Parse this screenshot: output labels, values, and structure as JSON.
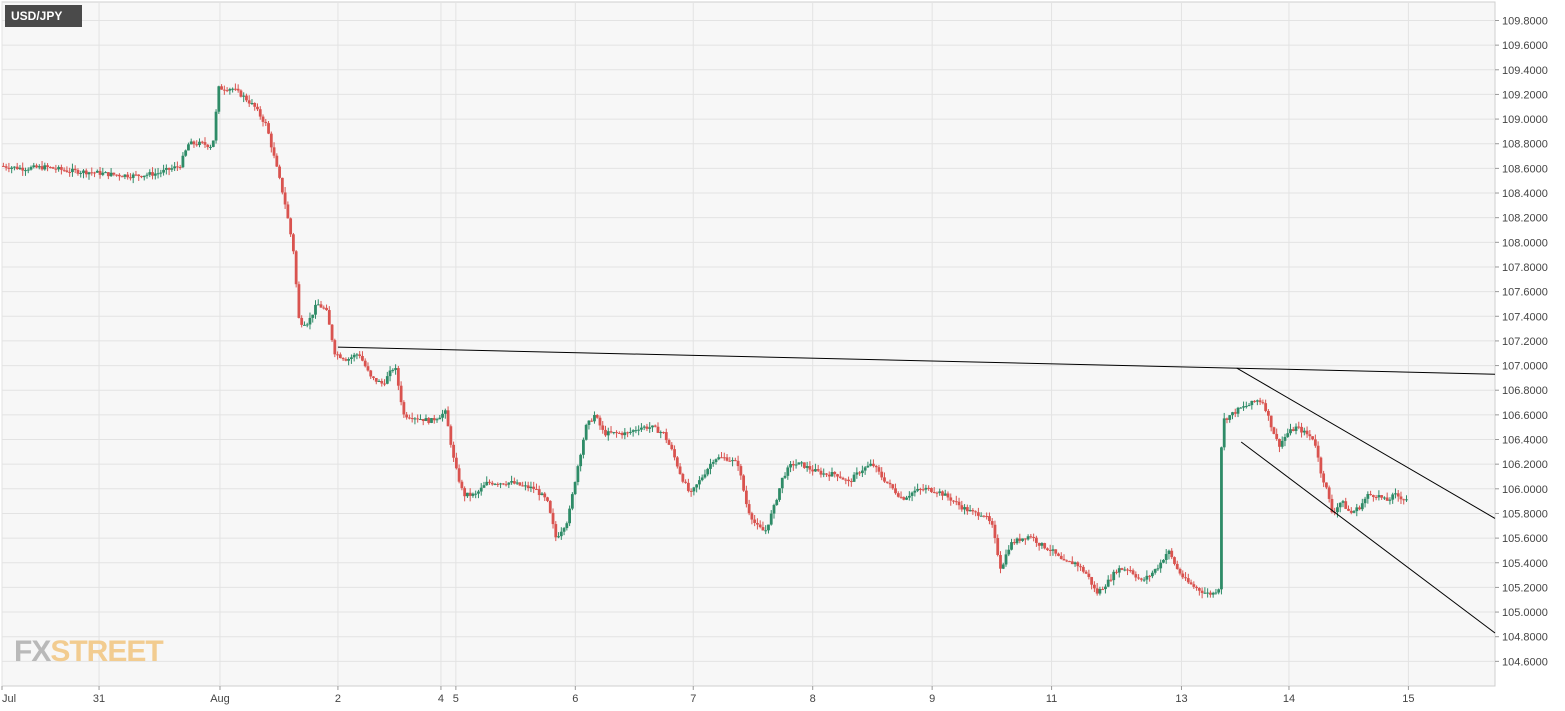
{
  "symbol": "USD/JPY",
  "logo": {
    "fx": "FX",
    "street": "STREET"
  },
  "colors": {
    "up": "#2e8b67",
    "down": "#d9534f",
    "grid": "#e3e3e3",
    "axis_text": "#444444",
    "line": "#000000"
  },
  "chart_data": {
    "type": "candlestick",
    "title": "",
    "xlabel": "",
    "ylabel": "",
    "ylim": [
      104.4,
      109.95
    ],
    "xlim": [
      0,
      1000
    ],
    "grid": true,
    "y_ticks": [
      "104.6000",
      "104.8000",
      "105.0000",
      "105.2000",
      "105.4000",
      "105.6000",
      "105.8000",
      "106.0000",
      "106.2000",
      "106.4000",
      "106.6000",
      "106.8000",
      "107.0000",
      "107.2000",
      "107.4000",
      "107.6000",
      "107.8000",
      "108.0000",
      "108.2000",
      "108.4000",
      "108.6000",
      "108.8000",
      "109.0000",
      "109.2000",
      "109.4000",
      "109.6000",
      "109.8000"
    ],
    "x_ticks": [
      {
        "label": "Jul",
        "x": 0
      },
      {
        "label": "31",
        "x": 65
      },
      {
        "label": "Aug",
        "x": 146
      },
      {
        "label": "2",
        "x": 225
      },
      {
        "label": "4",
        "x": 294
      },
      {
        "label": "5",
        "x": 304
      },
      {
        "label": "6",
        "x": 384
      },
      {
        "label": "7",
        "x": 463
      },
      {
        "label": "8",
        "x": 543
      },
      {
        "label": "9",
        "x": 623
      },
      {
        "label": "11",
        "x": 703
      },
      {
        "label": "13",
        "x": 790
      },
      {
        "label": "14",
        "x": 862
      },
      {
        "label": "15",
        "x": 942
      }
    ],
    "anchors": [
      [
        0,
        108.62
      ],
      [
        15,
        108.6
      ],
      [
        30,
        108.61
      ],
      [
        45,
        108.58
      ],
      [
        60,
        108.57
      ],
      [
        75,
        108.55
      ],
      [
        90,
        108.54
      ],
      [
        105,
        108.56
      ],
      [
        120,
        108.62
      ],
      [
        126,
        108.8
      ],
      [
        135,
        108.8
      ],
      [
        142,
        108.78
      ],
      [
        146,
        109.25
      ],
      [
        155,
        109.25
      ],
      [
        163,
        109.18
      ],
      [
        170,
        109.1
      ],
      [
        178,
        108.95
      ],
      [
        184,
        108.65
      ],
      [
        190,
        108.35
      ],
      [
        196,
        107.95
      ],
      [
        200,
        107.35
      ],
      [
        206,
        107.35
      ],
      [
        212,
        107.5
      ],
      [
        218,
        107.45
      ],
      [
        224,
        107.1
      ],
      [
        232,
        107.05
      ],
      [
        240,
        107.1
      ],
      [
        248,
        106.9
      ],
      [
        256,
        106.85
      ],
      [
        264,
        107.0
      ],
      [
        270,
        106.6
      ],
      [
        278,
        106.58
      ],
      [
        288,
        106.55
      ],
      [
        298,
        106.62
      ],
      [
        304,
        106.2
      ],
      [
        310,
        105.95
      ],
      [
        318,
        105.95
      ],
      [
        326,
        106.05
      ],
      [
        334,
        106.05
      ],
      [
        342,
        106.05
      ],
      [
        350,
        106.02
      ],
      [
        358,
        106.0
      ],
      [
        366,
        105.9
      ],
      [
        372,
        105.6
      ],
      [
        380,
        105.75
      ],
      [
        386,
        106.15
      ],
      [
        392,
        106.5
      ],
      [
        398,
        106.6
      ],
      [
        404,
        106.45
      ],
      [
        412,
        106.45
      ],
      [
        420,
        106.45
      ],
      [
        428,
        106.5
      ],
      [
        436,
        106.5
      ],
      [
        444,
        106.45
      ],
      [
        450,
        106.3
      ],
      [
        456,
        106.1
      ],
      [
        462,
        105.95
      ],
      [
        470,
        106.1
      ],
      [
        478,
        106.25
      ],
      [
        486,
        106.25
      ],
      [
        494,
        106.2
      ],
      [
        500,
        105.85
      ],
      [
        506,
        105.7
      ],
      [
        512,
        105.65
      ],
      [
        518,
        105.85
      ],
      [
        524,
        106.1
      ],
      [
        530,
        106.2
      ],
      [
        536,
        106.2
      ],
      [
        544,
        106.15
      ],
      [
        552,
        106.12
      ],
      [
        560,
        106.12
      ],
      [
        568,
        106.05
      ],
      [
        576,
        106.15
      ],
      [
        584,
        106.2
      ],
      [
        590,
        106.1
      ],
      [
        596,
        106.02
      ],
      [
        604,
        105.92
      ],
      [
        612,
        105.98
      ],
      [
        620,
        106.0
      ],
      [
        628,
        105.98
      ],
      [
        636,
        105.92
      ],
      [
        644,
        105.85
      ],
      [
        652,
        105.8
      ],
      [
        658,
        105.8
      ],
      [
        664,
        105.7
      ],
      [
        670,
        105.35
      ],
      [
        676,
        105.55
      ],
      [
        684,
        105.6
      ],
      [
        690,
        105.62
      ],
      [
        696,
        105.55
      ],
      [
        704,
        105.5
      ],
      [
        712,
        105.4
      ],
      [
        720,
        105.4
      ],
      [
        728,
        105.3
      ],
      [
        734,
        105.15
      ],
      [
        742,
        105.25
      ],
      [
        748,
        105.35
      ],
      [
        756,
        105.35
      ],
      [
        764,
        105.25
      ],
      [
        770,
        105.3
      ],
      [
        776,
        105.38
      ],
      [
        782,
        105.5
      ],
      [
        788,
        105.35
      ],
      [
        794,
        105.25
      ],
      [
        800,
        105.2
      ],
      [
        808,
        105.15
      ],
      [
        812,
        105.15
      ],
      [
        816,
        105.2
      ],
      [
        818,
        106.55
      ],
      [
        824,
        106.6
      ],
      [
        830,
        106.65
      ],
      [
        836,
        106.68
      ],
      [
        842,
        106.72
      ],
      [
        846,
        106.7
      ],
      [
        850,
        106.55
      ],
      [
        856,
        106.35
      ],
      [
        862,
        106.45
      ],
      [
        868,
        106.5
      ],
      [
        874,
        106.45
      ],
      [
        880,
        106.4
      ],
      [
        884,
        106.15
      ],
      [
        888,
        106.0
      ],
      [
        892,
        105.8
      ],
      [
        898,
        105.9
      ],
      [
        904,
        105.8
      ],
      [
        910,
        105.85
      ],
      [
        916,
        105.95
      ],
      [
        922,
        105.95
      ],
      [
        928,
        105.9
      ],
      [
        934,
        105.95
      ],
      [
        940,
        105.92
      ]
    ],
    "trendlines": [
      {
        "x": [
          225,
          1000
        ],
        "y": [
          107.15,
          106.93
        ]
      },
      {
        "x": [
          827,
          1000
        ],
        "y": [
          106.98,
          105.76
        ]
      },
      {
        "x": [
          830,
          1000
        ],
        "y": [
          106.38,
          104.83
        ]
      }
    ]
  }
}
